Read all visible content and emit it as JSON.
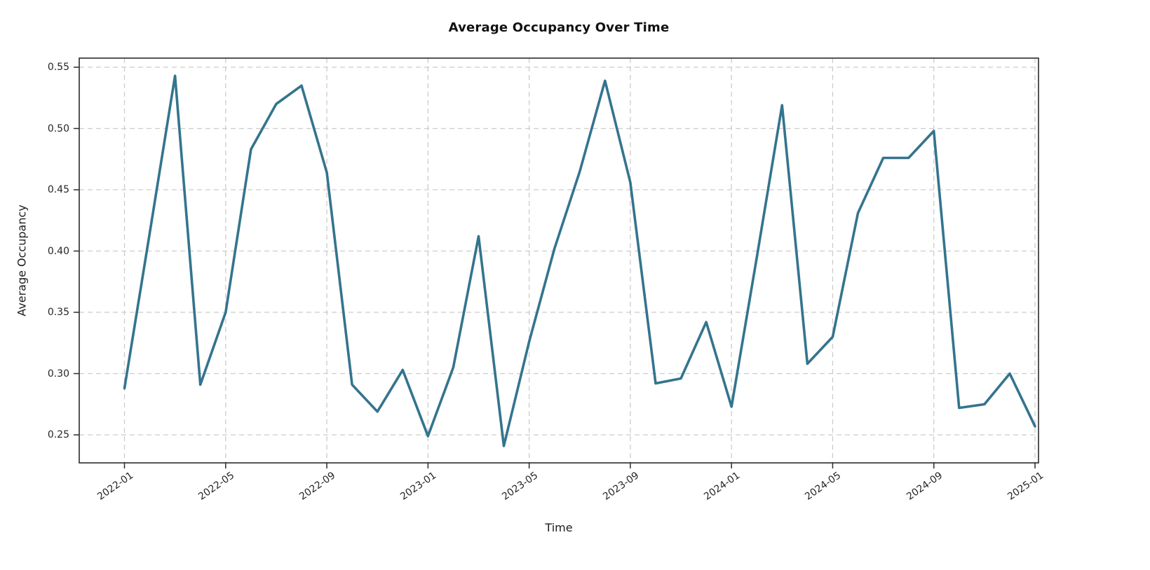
{
  "chart_data": {
    "type": "line",
    "title": "Average Occupancy Over Time",
    "xlabel": "Time",
    "ylabel": "Average Occupancy",
    "x": [
      "2022-01",
      "2022-02",
      "2022-03",
      "2022-04",
      "2022-05",
      "2022-06",
      "2022-07",
      "2022-08",
      "2022-09",
      "2022-10",
      "2022-11",
      "2022-12",
      "2023-01",
      "2023-02",
      "2023-03",
      "2023-04",
      "2023-05",
      "2023-06",
      "2023-07",
      "2023-08",
      "2023-09",
      "2023-10",
      "2023-11",
      "2023-12",
      "2024-01",
      "2024-02",
      "2024-03",
      "2024-04",
      "2024-05",
      "2024-06",
      "2024-07",
      "2024-08",
      "2024-09",
      "2024-10",
      "2024-11",
      "2024-12",
      "2025-01"
    ],
    "values": [
      0.288,
      0.415,
      0.543,
      0.291,
      0.35,
      0.483,
      0.52,
      0.535,
      0.464,
      0.291,
      0.269,
      0.303,
      0.249,
      0.305,
      0.412,
      0.241,
      0.326,
      0.402,
      0.465,
      0.539,
      0.456,
      0.292,
      0.296,
      0.342,
      0.273,
      0.395,
      0.519,
      0.308,
      0.33,
      0.431,
      0.476,
      0.476,
      0.498,
      0.272,
      0.275,
      0.3,
      0.257
    ],
    "x_ticks": [
      {
        "label": "2022-01",
        "month_index": 0
      },
      {
        "label": "2022-05",
        "month_index": 4
      },
      {
        "label": "2022-09",
        "month_index": 8
      },
      {
        "label": "2023-01",
        "month_index": 12
      },
      {
        "label": "2023-05",
        "month_index": 16
      },
      {
        "label": "2023-09",
        "month_index": 20
      },
      {
        "label": "2024-01",
        "month_index": 24
      },
      {
        "label": "2024-05",
        "month_index": 28
      },
      {
        "label": "2024-09",
        "month_index": 32
      },
      {
        "label": "2025-01",
        "month_index": 36
      }
    ],
    "y_ticks": [
      {
        "label": "0.25",
        "value": 0.25
      },
      {
        "label": "0.30",
        "value": 0.3
      },
      {
        "label": "0.35",
        "value": 0.35
      },
      {
        "label": "0.40",
        "value": 0.4
      },
      {
        "label": "0.45",
        "value": 0.45
      },
      {
        "label": "0.50",
        "value": 0.5
      },
      {
        "label": "0.55",
        "value": 0.55
      }
    ],
    "ylim": [
      0.227,
      0.557
    ],
    "grid": "dashed",
    "legend": "none",
    "x_tick_rotation_deg": 35,
    "colors": {
      "line": "#34748e",
      "grid": "#cccccc",
      "spine": "#2b2b2b",
      "tick_text": "#262626",
      "background": "#ffffff"
    }
  }
}
